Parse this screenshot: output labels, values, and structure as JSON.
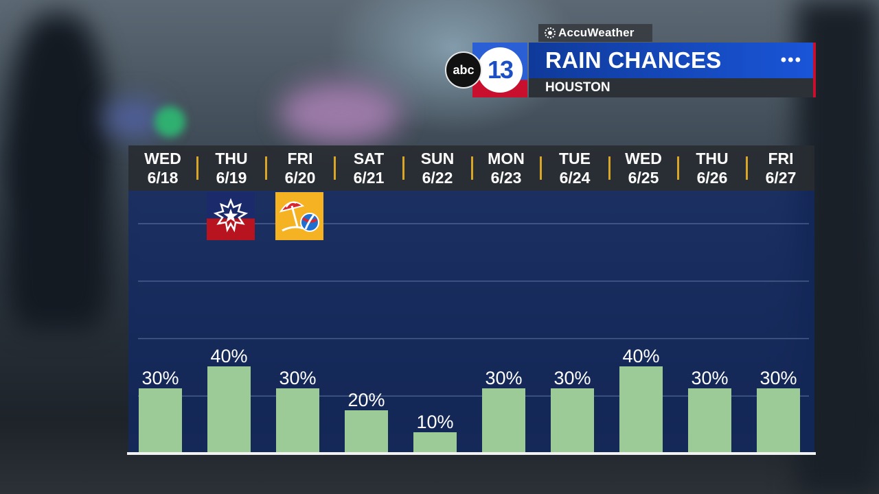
{
  "header": {
    "brand": "AccuWeather",
    "station_logo_abc": "abc",
    "station_logo_num": "13",
    "title": "RAIN CHANCES",
    "subtitle": "HOUSTON",
    "menu_icon": "more-dots-icon"
  },
  "icons": {
    "juneteenth": "juneteenth-star-icon",
    "beach": "beach-umbrella-ball-icon"
  },
  "colors": {
    "bar": "#9ccb98",
    "plot_bg": "#102a69",
    "separator": "#d9a628",
    "title_blue": "#1a55d8",
    "logo_red": "#c8102e"
  },
  "chart_data": {
    "type": "bar",
    "title": "RAIN CHANCES",
    "categories": [
      "WED 6/18",
      "THU 6/19",
      "FRI 6/20",
      "SAT 6/21",
      "SUN 6/22",
      "MON 6/23",
      "TUE 6/24",
      "WED 6/25",
      "THU 6/26",
      "FRI 6/27"
    ],
    "days": [
      {
        "dow": "WED",
        "date": "6/18"
      },
      {
        "dow": "THU",
        "date": "6/19"
      },
      {
        "dow": "FRI",
        "date": "6/20"
      },
      {
        "dow": "SAT",
        "date": "6/21"
      },
      {
        "dow": "SUN",
        "date": "6/22"
      },
      {
        "dow": "MON",
        "date": "6/23"
      },
      {
        "dow": "TUE",
        "date": "6/24"
      },
      {
        "dow": "WED",
        "date": "6/25"
      },
      {
        "dow": "THU",
        "date": "6/26"
      },
      {
        "dow": "FRI",
        "date": "6/27"
      }
    ],
    "values": [
      30,
      40,
      30,
      20,
      10,
      30,
      30,
      40,
      30,
      30
    ],
    "labels": [
      "30%",
      "40%",
      "30%",
      "20%",
      "10%",
      "30%",
      "30%",
      "40%",
      "30%",
      "30%"
    ],
    "unit": "%",
    "ylim": [
      0,
      100
    ],
    "grid": true,
    "gridlines": [
      20,
      40,
      60,
      80
    ],
    "legend": "none"
  }
}
